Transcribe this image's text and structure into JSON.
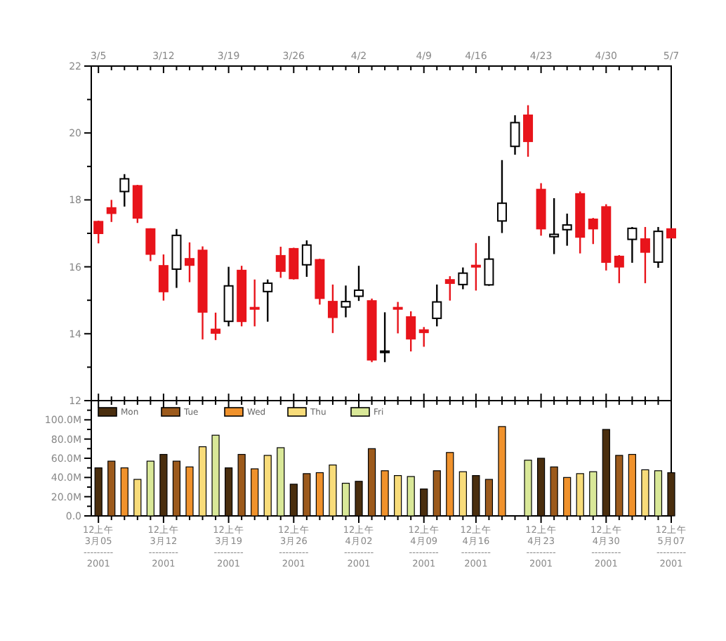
{
  "chart_data": [
    {
      "type": "candlestick",
      "categories": [
        "3/5",
        null,
        null,
        null,
        null,
        "3/12",
        null,
        null,
        null,
        null,
        "3/19",
        null,
        null,
        null,
        null,
        "3/26",
        null,
        null,
        null,
        null,
        "4/2",
        null,
        null,
        null,
        null,
        "4/9",
        null,
        null,
        null,
        "4/16",
        null,
        null,
        null,
        null,
        "4/23",
        null,
        null,
        null,
        null,
        "4/30",
        null,
        null,
        null,
        null,
        "5/7"
      ],
      "ohlc": [
        [
          17.35,
          17.38,
          16.7,
          17.0
        ],
        [
          17.76,
          18.0,
          17.34,
          17.6
        ],
        [
          18.25,
          18.77,
          17.8,
          18.63
        ],
        [
          18.42,
          18.45,
          17.31,
          17.46
        ],
        [
          17.13,
          17.15,
          16.17,
          16.38
        ],
        [
          16.03,
          16.37,
          14.99,
          15.26
        ],
        [
          15.93,
          17.13,
          15.37,
          16.94
        ],
        [
          16.24,
          16.73,
          15.54,
          16.05
        ],
        [
          16.49,
          16.61,
          13.83,
          14.65
        ],
        [
          14.13,
          14.63,
          13.81,
          14.02
        ],
        [
          14.37,
          16.0,
          14.22,
          15.43
        ],
        [
          15.89,
          16.03,
          14.22,
          14.37
        ],
        [
          14.78,
          15.62,
          14.22,
          14.76
        ],
        [
          15.26,
          15.62,
          14.36,
          15.51
        ],
        [
          16.33,
          16.6,
          15.67,
          15.87
        ],
        [
          16.54,
          16.57,
          15.62,
          15.65
        ],
        [
          16.06,
          16.79,
          15.7,
          16.65
        ],
        [
          16.21,
          16.24,
          14.87,
          15.06
        ],
        [
          14.96,
          15.47,
          14.02,
          14.49
        ],
        [
          14.8,
          15.44,
          14.49,
          14.96
        ],
        [
          15.12,
          16.03,
          14.98,
          15.3
        ],
        [
          14.98,
          15.05,
          13.15,
          13.22
        ],
        [
          13.46,
          14.64,
          13.15,
          13.48
        ],
        [
          14.78,
          14.95,
          14.01,
          14.76
        ],
        [
          14.5,
          14.67,
          13.47,
          13.85
        ],
        [
          14.11,
          14.2,
          13.61,
          14.04
        ],
        [
          14.46,
          15.47,
          14.22,
          14.95
        ],
        [
          15.61,
          15.72,
          14.99,
          15.51
        ],
        [
          15.47,
          15.98,
          15.33,
          15.81
        ],
        [
          16.04,
          16.71,
          15.29,
          16.0
        ],
        [
          15.46,
          16.92,
          15.43,
          16.23
        ],
        [
          17.37,
          19.19,
          17.01,
          17.9
        ],
        [
          19.6,
          20.53,
          19.35,
          20.31
        ],
        [
          20.53,
          20.83,
          19.29,
          19.75
        ],
        [
          18.31,
          18.5,
          16.93,
          17.14
        ],
        [
          16.9,
          18.05,
          16.38,
          16.97
        ],
        [
          17.11,
          17.59,
          16.63,
          17.25
        ],
        [
          18.18,
          18.25,
          16.4,
          16.89
        ],
        [
          17.42,
          17.46,
          16.68,
          17.14
        ],
        [
          17.79,
          17.87,
          15.89,
          16.14
        ],
        [
          16.31,
          16.35,
          15.51,
          16.0
        ],
        [
          16.82,
          17.19,
          16.12,
          17.15
        ],
        [
          16.83,
          17.19,
          15.51,
          16.44
        ],
        [
          16.14,
          17.19,
          15.97,
          17.06
        ],
        [
          17.13,
          17.15,
          16.85,
          16.87
        ]
      ],
      "ylim": [
        12,
        22
      ],
      "yticks": [
        12,
        {
          "value": 13,
          "label": null
        },
        14,
        {
          "value": 15,
          "label": null
        },
        16,
        {
          "value": 17,
          "label": null
        },
        18,
        {
          "value": 19,
          "label": null
        },
        20,
        {
          "value": 21,
          "label": null
        },
        22
      ],
      "grid": false
    },
    {
      "type": "bar",
      "legend": "top left",
      "grid": false,
      "categories": [
        "12上午\n3月05\n---------\n2001",
        null,
        null,
        null,
        null,
        "12上午\n3月12\n---------\n2001",
        null,
        null,
        null,
        null,
        "12上午\n3月19\n---------\n2001",
        null,
        null,
        null,
        null,
        "12上午\n3月26\n---------\n2001",
        null,
        null,
        null,
        null,
        "12上午\n4月02\n---------\n2001",
        null,
        null,
        null,
        null,
        "12上午\n4月09\n---------\n2001",
        null,
        null,
        null,
        "12上午\n4月16\n---------\n2001",
        null,
        null,
        null,
        null,
        "12上午\n4月23\n---------\n2001",
        null,
        null,
        null,
        null,
        "12上午\n4月30\n---------\n2001",
        null,
        null,
        null,
        null,
        "12上午\n5月07\n---------\n2001"
      ],
      "series": [
        {
          "name": "Mon",
          "color": "#4a2e0e",
          "values": [
            50,
            null,
            null,
            null,
            null,
            64,
            null,
            null,
            null,
            null,
            50,
            null,
            null,
            null,
            null,
            33,
            null,
            null,
            null,
            null,
            36,
            null,
            null,
            null,
            null,
            28,
            null,
            null,
            null,
            42,
            null,
            null,
            null,
            null,
            60,
            null,
            null,
            null,
            null,
            90,
            null,
            null,
            null,
            null,
            45
          ]
        },
        {
          "name": "Tue",
          "color": "#9c5a1c",
          "values": [
            null,
            57,
            null,
            null,
            null,
            null,
            57,
            null,
            null,
            null,
            null,
            64,
            null,
            null,
            null,
            null,
            44,
            null,
            null,
            null,
            null,
            70,
            null,
            null,
            null,
            null,
            47,
            null,
            null,
            null,
            38,
            null,
            null,
            null,
            null,
            51,
            null,
            null,
            null,
            null,
            63,
            null,
            null,
            null,
            null
          ]
        },
        {
          "name": "Wed",
          "color": "#f0922c",
          "values": [
            null,
            null,
            50,
            null,
            null,
            null,
            null,
            51,
            null,
            null,
            null,
            null,
            49,
            null,
            null,
            null,
            null,
            45,
            null,
            null,
            null,
            null,
            47,
            null,
            null,
            null,
            null,
            66,
            null,
            null,
            null,
            93,
            null,
            null,
            null,
            null,
            40,
            null,
            null,
            null,
            null,
            64,
            null,
            null,
            null
          ]
        },
        {
          "name": "Thu",
          "color": "#f8dc7a",
          "values": [
            null,
            null,
            null,
            38,
            null,
            null,
            null,
            null,
            72,
            null,
            null,
            null,
            null,
            63,
            null,
            null,
            null,
            null,
            53,
            null,
            null,
            null,
            null,
            42,
            null,
            null,
            null,
            null,
            46,
            null,
            null,
            null,
            null,
            null,
            null,
            null,
            null,
            44,
            null,
            null,
            null,
            null,
            48,
            null,
            null
          ]
        },
        {
          "name": "Fri",
          "color": "#d9e898",
          "values": [
            null,
            null,
            null,
            null,
            57,
            null,
            null,
            null,
            null,
            84,
            null,
            null,
            null,
            null,
            71,
            null,
            null,
            null,
            null,
            34,
            null,
            null,
            null,
            null,
            41,
            null,
            null,
            null,
            null,
            null,
            null,
            null,
            null,
            58,
            null,
            null,
            null,
            null,
            46,
            null,
            null,
            null,
            null,
            47,
            null
          ]
        }
      ],
      "ylim": [
        0,
        120
      ],
      "yticks": [
        {
          "value": 0,
          "label": "0.0"
        },
        {
          "value": 10,
          "label": null
        },
        {
          "value": 20,
          "label": "20.0M"
        },
        {
          "value": 30,
          "label": null
        },
        {
          "value": 40,
          "label": "40.0M"
        },
        {
          "value": 50,
          "label": null
        },
        {
          "value": 60,
          "label": "60.0M"
        },
        {
          "value": 70,
          "label": null
        },
        {
          "value": 80,
          "label": "80.0M"
        },
        {
          "value": 90,
          "label": null
        },
        {
          "value": 100,
          "label": "100.0M"
        },
        {
          "value": 110,
          "label": null
        }
      ]
    }
  ]
}
